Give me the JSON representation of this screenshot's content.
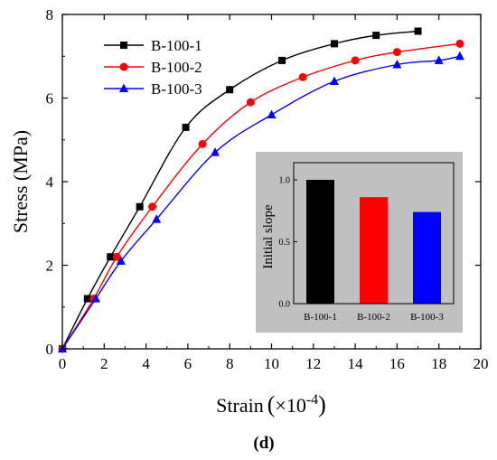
{
  "chart_data": [
    {
      "type": "line",
      "title": "",
      "xlabel": "Strain",
      "xlabel_unit": "×10",
      "xlabel_exp": "-4",
      "ylabel": "Stress (MPa)",
      "xlim": [
        0,
        20
      ],
      "ylim": [
        0,
        8
      ],
      "xticks": [
        "0",
        "2",
        "4",
        "6",
        "8",
        "10",
        "12",
        "14",
        "16",
        "18",
        "20"
      ],
      "yticks": [
        "0",
        "2",
        "4",
        "6",
        "8"
      ],
      "grid": false,
      "legend_position": "top-left",
      "series": [
        {
          "name": "B-100-1",
          "color": "#000000",
          "marker": "square",
          "points": [
            [
              0,
              0
            ],
            [
              1.2,
              1.2
            ],
            [
              2.3,
              2.2
            ],
            [
              3.7,
              3.4
            ],
            [
              5.9,
              5.3
            ],
            [
              8.0,
              6.2
            ],
            [
              10.5,
              6.9
            ],
            [
              13.0,
              7.3
            ],
            [
              15.0,
              7.5
            ],
            [
              17.0,
              7.6
            ]
          ]
        },
        {
          "name": "B-100-2",
          "color": "#ff0000",
          "marker": "circle",
          "points": [
            [
              0,
              0
            ],
            [
              1.5,
              1.2
            ],
            [
              2.6,
              2.2
            ],
            [
              4.3,
              3.4
            ],
            [
              6.7,
              4.9
            ],
            [
              9.0,
              5.9
            ],
            [
              11.5,
              6.5
            ],
            [
              14.0,
              6.9
            ],
            [
              16.0,
              7.1
            ],
            [
              19.0,
              7.3
            ]
          ]
        },
        {
          "name": "B-100-3",
          "color": "#0000ff",
          "marker": "triangle",
          "points": [
            [
              0,
              0
            ],
            [
              1.6,
              1.2
            ],
            [
              2.8,
              2.1
            ],
            [
              4.5,
              3.1
            ],
            [
              7.3,
              4.7
            ],
            [
              10.0,
              5.6
            ],
            [
              13.0,
              6.4
            ],
            [
              16.0,
              6.8
            ],
            [
              18.0,
              6.9
            ],
            [
              19.0,
              7.0
            ]
          ]
        }
      ]
    },
    {
      "type": "bar",
      "title": "",
      "ylabel": "Initial slope",
      "background": "#c0c0c0",
      "ylim": [
        0,
        1.0
      ],
      "yticks": [
        "0.0",
        "0.5",
        "1.0"
      ],
      "categories": [
        "B-100-1",
        "B-100-2",
        "B-100-3"
      ],
      "values": [
        1.0,
        0.86,
        0.74
      ],
      "colors": [
        "#000000",
        "#ff0000",
        "#0000ff"
      ]
    }
  ],
  "panel_label": "(d)"
}
